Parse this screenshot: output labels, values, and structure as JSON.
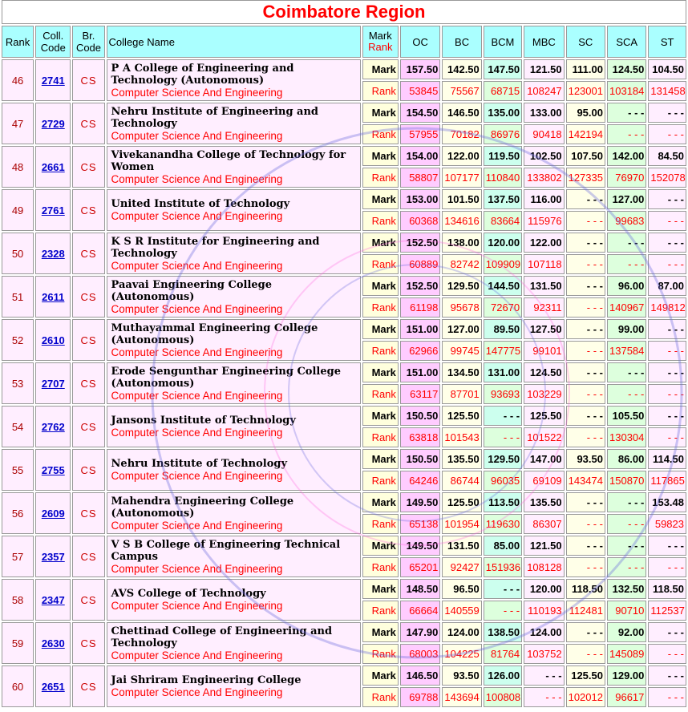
{
  "title": "Coimbatore Region",
  "headers": {
    "rank": "Rank",
    "coll_code": "Coll. Code",
    "br_code": "Br. Code",
    "college_name": "College Name",
    "mark": "Mark",
    "rank_label": "Rank",
    "cols": [
      "OC",
      "BC",
      "BCM",
      "MBC",
      "SC",
      "SCA",
      "ST"
    ]
  },
  "row_labels": {
    "mark": "Mark",
    "rank": "Rank"
  },
  "rows": [
    {
      "rank": "46",
      "code": "2741",
      "br": "CS",
      "college": "P A College of Engineering and Technology (Autonomous)",
      "branch": "Computer Science And Engineering",
      "marks": [
        "157.50",
        "142.50",
        "147.50",
        "121.50",
        "111.00",
        "124.50",
        "104.50"
      ],
      "ranks": [
        "53845",
        "75567",
        "68715",
        "108247",
        "123001",
        "103184",
        "131458"
      ]
    },
    {
      "rank": "47",
      "code": "2729",
      "br": "CS",
      "college": "Nehru Institute of Engineering and Technology",
      "branch": "Computer Science And Engineering",
      "marks": [
        "154.50",
        "146.50",
        "135.00",
        "133.00",
        "95.00",
        "- - -",
        "- - -"
      ],
      "ranks": [
        "57955",
        "70182",
        "86976",
        "90418",
        "142194",
        "- - -",
        "- - -"
      ]
    },
    {
      "rank": "48",
      "code": "2661",
      "br": "CS",
      "college": "Vivekanandha College of Technology for Women",
      "branch": "Computer Science And Engineering",
      "marks": [
        "154.00",
        "122.00",
        "119.50",
        "102.50",
        "107.50",
        "142.00",
        "84.50"
      ],
      "ranks": [
        "58807",
        "107177",
        "110840",
        "133802",
        "127335",
        "76970",
        "152078"
      ]
    },
    {
      "rank": "49",
      "code": "2761",
      "br": "CS",
      "college": "United Institute of Technology",
      "branch": "Computer Science And Engineering",
      "marks": [
        "153.00",
        "101.50",
        "137.50",
        "116.00",
        "- - -",
        "127.00",
        "- - -"
      ],
      "ranks": [
        "60368",
        "134616",
        "83664",
        "115976",
        "- - -",
        "99683",
        "- - -"
      ]
    },
    {
      "rank": "50",
      "code": "2328",
      "br": "CS",
      "college": "K S R Institute for Engineering and Technology",
      "branch": "Computer Science And Engineering",
      "marks": [
        "152.50",
        "138.00",
        "120.00",
        "122.00",
        "- - -",
        "- - -",
        "- - -"
      ],
      "ranks": [
        "60889",
        "82742",
        "109909",
        "107118",
        "- - -",
        "- - -",
        "- - -"
      ]
    },
    {
      "rank": "51",
      "code": "2611",
      "br": "CS",
      "college": "Paavai Engineering College (Autonomous)",
      "branch": "Computer Science And Engineering",
      "marks": [
        "152.50",
        "129.50",
        "144.50",
        "131.50",
        "- - -",
        "96.00",
        "87.00"
      ],
      "ranks": [
        "61198",
        "95678",
        "72670",
        "92311",
        "- - -",
        "140967",
        "149812"
      ]
    },
    {
      "rank": "52",
      "code": "2610",
      "br": "CS",
      "college": "Muthayammal Engineering College (Autonomous)",
      "branch": "Computer Science And Engineering",
      "marks": [
        "151.00",
        "127.00",
        "89.50",
        "127.50",
        "- - -",
        "99.00",
        "- - -"
      ],
      "ranks": [
        "62966",
        "99745",
        "147775",
        "99101",
        "- - -",
        "137584",
        "- - -"
      ]
    },
    {
      "rank": "53",
      "code": "2707",
      "br": "CS",
      "college": "Erode Sengunthar Engineering College (Autonomous)",
      "branch": "Computer Science And Engineering",
      "marks": [
        "151.00",
        "134.50",
        "131.00",
        "124.50",
        "- - -",
        "- - -",
        "- - -"
      ],
      "ranks": [
        "63117",
        "87701",
        "93693",
        "103229",
        "- - -",
        "- - -",
        "- - -"
      ]
    },
    {
      "rank": "54",
      "code": "2762",
      "br": "CS",
      "college": "Jansons Institute of Technology",
      "branch": "Computer Science And Engineering",
      "marks": [
        "150.50",
        "125.50",
        "- - -",
        "125.50",
        "- - -",
        "105.50",
        "- - -"
      ],
      "ranks": [
        "63818",
        "101543",
        "- - -",
        "101522",
        "- - -",
        "130304",
        "- - -"
      ]
    },
    {
      "rank": "55",
      "code": "2755",
      "br": "CS",
      "college": "Nehru Institute of Technology",
      "branch": "Computer Science And Engineering",
      "marks": [
        "150.50",
        "135.50",
        "129.50",
        "147.00",
        "93.50",
        "86.00",
        "114.50"
      ],
      "ranks": [
        "64246",
        "86744",
        "96035",
        "69109",
        "143474",
        "150870",
        "117865"
      ]
    },
    {
      "rank": "56",
      "code": "2609",
      "br": "CS",
      "college": "Mahendra Engineering College (Autonomous)",
      "branch": "Computer Science And Engineering",
      "marks": [
        "149.50",
        "125.50",
        "113.50",
        "135.50",
        "- - -",
        "- - -",
        "153.48"
      ],
      "ranks": [
        "65138",
        "101954",
        "119630",
        "86307",
        "- - -",
        "- - -",
        "59823"
      ]
    },
    {
      "rank": "57",
      "code": "2357",
      "br": "CS",
      "college": "V S B College of Engineering Technical Campus",
      "branch": "Computer Science And Engineering",
      "marks": [
        "149.50",
        "131.50",
        "85.00",
        "121.50",
        "- - -",
        "- - -",
        "- - -"
      ],
      "ranks": [
        "65201",
        "92427",
        "151936",
        "108128",
        "- - -",
        "- - -",
        "- - -"
      ]
    },
    {
      "rank": "58",
      "code": "2347",
      "br": "CS",
      "college": "AVS College of Technology",
      "branch": "Computer Science And Engineering",
      "marks": [
        "148.50",
        "96.50",
        "- - -",
        "120.00",
        "118.50",
        "132.50",
        "118.50"
      ],
      "ranks": [
        "66664",
        "140559",
        "- - -",
        "110193",
        "112481",
        "90710",
        "112537"
      ]
    },
    {
      "rank": "59",
      "code": "2630",
      "br": "CS",
      "college": "Chettinad College of Engineering and Technology",
      "branch": "Computer Science And Engineering",
      "marks": [
        "147.90",
        "124.00",
        "138.50",
        "124.00",
        "- - -",
        "92.00",
        "- - -"
      ],
      "ranks": [
        "68003",
        "104225",
        "81764",
        "103752",
        "- - -",
        "145089",
        "- - -"
      ]
    },
    {
      "rank": "60",
      "code": "2651",
      "br": "CS",
      "college": "Jai Shriram Engineering College",
      "branch": "Computer Science And Engineering",
      "marks": [
        "146.50",
        "93.50",
        "126.00",
        "- - -",
        "125.50",
        "129.00",
        "- - -"
      ],
      "ranks": [
        "69788",
        "143694",
        "100808",
        "- - -",
        "102012",
        "96617",
        "- - -"
      ]
    }
  ],
  "watermark": {
    "text": "CUTOFF MARKS 2023 BASED ON ADMISSION",
    "colors": [
      "#6666dd",
      "#ff66dd"
    ]
  }
}
